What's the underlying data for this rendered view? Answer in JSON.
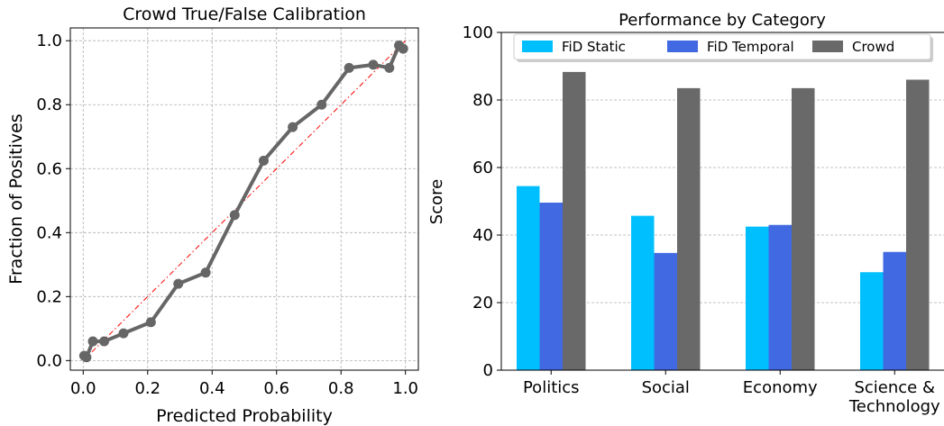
{
  "chart_data": [
    {
      "type": "line",
      "title": "Crowd True/False Calibration",
      "xlabel": "Predicted Probability",
      "ylabel": "Fraction of Positives",
      "xlim": [
        -0.04,
        1.04
      ],
      "ylim": [
        -0.03,
        1.04
      ],
      "xticks": [
        0.0,
        0.2,
        0.4,
        0.6,
        0.8,
        1.0
      ],
      "xtick_labels": [
        "0.0",
        "0.2",
        "0.4",
        "0.6",
        "0.8",
        "1.0"
      ],
      "yticks": [
        0.0,
        0.2,
        0.4,
        0.6,
        0.8,
        1.0
      ],
      "ytick_labels": [
        "0.0",
        "0.2",
        "0.4",
        "0.6",
        "0.8",
        "1.0"
      ],
      "grid": true,
      "series": [
        {
          "color": "#666666",
          "x": [
            0.003,
            0.01,
            0.03,
            0.065,
            0.125,
            0.21,
            0.295,
            0.38,
            0.47,
            0.56,
            0.65,
            0.74,
            0.825,
            0.9,
            0.95,
            0.98,
            0.993
          ],
          "y": [
            0.015,
            0.01,
            0.06,
            0.06,
            0.085,
            0.12,
            0.24,
            0.275,
            0.455,
            0.625,
            0.73,
            0.8,
            0.915,
            0.925,
            0.915,
            0.985,
            0.975
          ]
        }
      ],
      "reference_line": {
        "x": [
          0,
          1
        ],
        "y": [
          0,
          1
        ],
        "color": "#ff0000",
        "style": "dash-dot"
      }
    },
    {
      "type": "bar",
      "title": "Performance by Category",
      "xlabel": "",
      "ylabel": "Score",
      "ylim": [
        0,
        100
      ],
      "yticks": [
        0,
        20,
        40,
        60,
        80,
        100
      ],
      "ytick_labels": [
        "0",
        "20",
        "40",
        "60",
        "80",
        "100"
      ],
      "categories": [
        "Politics",
        "Social",
        "Economy",
        "Science &\nTechnology"
      ],
      "grid": true,
      "legend_placement": "top",
      "series": [
        {
          "name": "FiD Static",
          "color": "#00bfff",
          "values": [
            54.5,
            45.7,
            42.5,
            29.0
          ]
        },
        {
          "name": "FiD Temporal",
          "color": "#4169e1",
          "values": [
            49.6,
            34.7,
            43.0,
            35.0
          ]
        },
        {
          "name": "Crowd",
          "color": "#696969",
          "values": [
            88.3,
            83.5,
            83.5,
            86.0
          ]
        }
      ]
    }
  ]
}
